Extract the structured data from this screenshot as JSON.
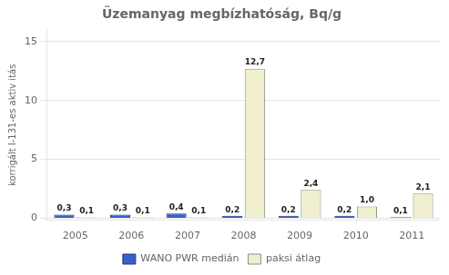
{
  "chart_data": {
    "type": "bar",
    "title": "Üzemanyag megbízhatóság, Bq/g",
    "ylabel": "korrigált I-131-es aktiv itás",
    "categories": [
      "2005",
      "2006",
      "2007",
      "2008",
      "2009",
      "2010",
      "2011"
    ],
    "series": [
      {
        "name": "WANO PWR medián",
        "color": "#3a5fcd",
        "values": [
          0.3,
          0.3,
          0.4,
          0.2,
          0.2,
          0.2,
          0.1
        ],
        "value_labels": [
          "0,3",
          "0,3",
          "0,4",
          "0,2",
          "0,2",
          "0,2",
          "0,1"
        ]
      },
      {
        "name": "paksi átlag",
        "color": "#f0f0d0",
        "values": [
          0.1,
          0.1,
          0.1,
          12.7,
          2.4,
          1.0,
          2.1
        ],
        "value_labels": [
          "0,1",
          "0,1",
          "0,1",
          "12,7",
          "2,4",
          "1,0",
          "2,1"
        ]
      }
    ],
    "ylim": [
      -0.18,
      16
    ],
    "yticks": [
      0,
      5,
      10,
      15
    ],
    "grid": true,
    "legend": "bottom",
    "data_labels": true
  }
}
